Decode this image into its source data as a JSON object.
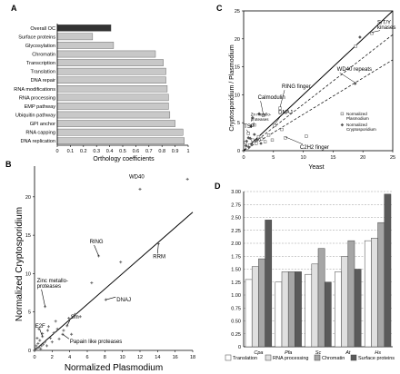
{
  "chart_data": [
    {
      "panel": "A",
      "type": "bar",
      "orientation": "horizontal",
      "categories": [
        "Overall OC",
        "Surface proteins",
        "Glycosylation",
        "Chromatin",
        "Transcription",
        "Translation",
        "DNA repair",
        "RNA modifications",
        "RNA processing",
        "EMP pathway",
        "Ubiquitin pathway",
        "GPI anchor",
        "RNA capping",
        "DNA replication"
      ],
      "values": [
        0.41,
        0.27,
        0.43,
        0.75,
        0.81,
        0.83,
        0.83,
        0.84,
        0.85,
        0.85,
        0.86,
        0.9,
        0.96,
        0.97
      ],
      "highlight_color": "#333333",
      "bar_color": "#c8c8c8",
      "xlabel": "Orthology coefficients",
      "xlim": [
        0,
        1
      ],
      "xticks": [
        "0",
        "0.1",
        "0.2",
        "0.3",
        "0.4",
        "0.5",
        "0.6",
        "0.7",
        "0.8",
        "0.9",
        "1"
      ]
    },
    {
      "panel": "B",
      "type": "scatter",
      "xlabel": "Normalized Plasmodium",
      "ylabel": "Normalized Cryptosporidium",
      "xlim": [
        0,
        18
      ],
      "ylim": [
        0,
        24
      ],
      "xticks": [
        "0",
        "2",
        "4",
        "6",
        "8",
        "10",
        "12",
        "14",
        "16",
        "18"
      ],
      "yticks": [
        "0",
        "5",
        "10",
        "15",
        "20"
      ],
      "labeled_points": [
        {
          "label": "WD40",
          "x": 12,
          "y": 21
        },
        {
          "label": "RING",
          "x": 7.3,
          "y": 12.3
        },
        {
          "label": "RRM",
          "x": 14.1,
          "y": 13.9
        },
        {
          "label": "Zinc metallo-\nproteases",
          "x": 1.2,
          "y": 5.7
        },
        {
          "label": "DNAJ",
          "x": 8.1,
          "y": 6.6
        },
        {
          "label": "Sm",
          "x": 3.7,
          "y": 3.2
        },
        {
          "label": "E2F",
          "x": 0.9,
          "y": 1.8
        },
        {
          "label": "Papain like proteases",
          "x": 3.2,
          "y": 2.1
        }
      ],
      "other_points": [
        [
          17.4,
          22.3
        ],
        [
          9.8,
          11.5
        ],
        [
          6.5,
          8.8
        ],
        [
          5.2,
          4.4
        ],
        [
          4.6,
          4.7
        ],
        [
          2.6,
          2.8
        ],
        [
          2.2,
          2.3
        ],
        [
          1.8,
          1.6
        ],
        [
          1.5,
          2.6
        ],
        [
          1.2,
          1.1
        ],
        [
          1,
          0.8
        ],
        [
          0.8,
          0.6
        ],
        [
          0.6,
          1.3
        ],
        [
          0.5,
          0.4
        ],
        [
          0.4,
          0.9
        ],
        [
          0.3,
          0.3
        ],
        [
          0.2,
          0.6
        ],
        [
          0.1,
          0.2
        ],
        [
          0.7,
          0.2
        ],
        [
          1.4,
          0.6
        ],
        [
          2,
          1.1
        ],
        [
          2.8,
          1.5
        ],
        [
          3.3,
          2.6
        ],
        [
          0.3,
          1.6
        ],
        [
          0.9,
          2.2
        ],
        [
          1.6,
          3.1
        ],
        [
          2.4,
          3.8
        ],
        [
          0.5,
          2.8
        ],
        [
          3.9,
          4.2
        ],
        [
          4.2,
          2.1
        ]
      ],
      "diagonal": true
    },
    {
      "panel": "C",
      "type": "scatter",
      "xlabel": "Yeast",
      "ylabel": "Cryptosporidium / Plasmodium",
      "xlim": [
        0,
        25
      ],
      "ylim": [
        0,
        25
      ],
      "xticks": [
        "0",
        "5",
        "10",
        "15",
        "20",
        "25"
      ],
      "yticks": [
        "0",
        "5",
        "10",
        "15",
        "20",
        "25"
      ],
      "legend": [
        "Normalized\nPlasmodium",
        "Normalized\nCryptosporidium"
      ],
      "legend_position": "right",
      "series": [
        {
          "name": "Normalized Plasmodium",
          "marker": "open-square",
          "points": [
            [
              21.5,
              21
            ],
            [
              18.8,
              18.7
            ],
            [
              6.1,
              7.6
            ],
            [
              3.3,
              6.3
            ],
            [
              1.8,
              4.6
            ],
            [
              0.8,
              3.1
            ],
            [
              5.2,
              4.5
            ],
            [
              6.4,
              3.8
            ],
            [
              7,
              2.3
            ],
            [
              10.5,
              2.6
            ],
            [
              4.2,
              2.8
            ],
            [
              2.5,
              2.5
            ],
            [
              3,
              2.1
            ],
            [
              1.5,
              1.9
            ],
            [
              2.1,
              1.3
            ],
            [
              1,
              1
            ],
            [
              0.6,
              0.5
            ],
            [
              3.6,
              1.6
            ],
            [
              4.8,
              1.9
            ],
            [
              0.3,
              1.5
            ]
          ]
        },
        {
          "name": "Normalized Cryptosporidium",
          "marker": "filled-diamond",
          "points": [
            [
              19.5,
              20.3
            ],
            [
              18.7,
              12
            ],
            [
              2.6,
              6.6
            ],
            [
              1.5,
              5.9
            ],
            [
              1.2,
              4.4
            ],
            [
              0.8,
              2.3
            ],
            [
              0.5,
              1.7
            ],
            [
              1.8,
              2.9
            ],
            [
              2.3,
              1.9
            ],
            [
              1.3,
              1.2
            ],
            [
              0.9,
              0.6
            ],
            [
              2.9,
              1.3
            ],
            [
              0.4,
              0.9
            ],
            [
              1.1,
              2.2
            ]
          ]
        }
      ],
      "labeled_points": [
        {
          "label": "S/T/Y\nkinases",
          "x": 21.5,
          "y": 21
        },
        {
          "label": "RING finger",
          "x": 6.1,
          "y": 7.6
        },
        {
          "label": "Calmodulin",
          "x": 3.3,
          "y": 6.3
        },
        {
          "label": "DNAJ",
          "x": 5.2,
          "y": 4.5
        },
        {
          "label": "Zn metallo-\nproteases",
          "x": 1.8,
          "y": 4.6
        },
        {
          "label": "TSP",
          "x": 0.8,
          "y": 3.1
        },
        {
          "label": "WD40 repeats",
          "x": 18.7,
          "y": 12
        },
        {
          "label": "C2H2 finger",
          "x": 7,
          "y": 2.3
        }
      ],
      "reference_lines": [
        {
          "style": "solid",
          "slope": 1
        },
        {
          "style": "dashed",
          "slope": 0.83
        },
        {
          "style": "dashed",
          "slope": 0.65
        }
      ]
    },
    {
      "panel": "D",
      "type": "bar",
      "categories": [
        "Cpa",
        "Pfa",
        "Sc",
        "At",
        "Hs"
      ],
      "series": [
        {
          "name": "Translation",
          "color": "#ffffff",
          "values": [
            1.3,
            1.25,
            1.4,
            1.45,
            2.05
          ]
        },
        {
          "name": "RNA processing",
          "color": "#e0e0e0",
          "values": [
            1.55,
            1.45,
            1.6,
            1.75,
            2.1
          ]
        },
        {
          "name": "Chromatin",
          "color": "#a6a6a6",
          "values": [
            1.7,
            1.45,
            1.9,
            2.05,
            2.4
          ]
        },
        {
          "name": "Surface proteins",
          "color": "#5a5a5a",
          "values": [
            2.45,
            1.45,
            1.25,
            1.5,
            2.95
          ]
        }
      ],
      "ylim": [
        0,
        3
      ],
      "yticks": [
        "0",
        "0.25",
        "0.50",
        "0.75",
        "1.00",
        "1.25",
        "1.50",
        "1.75",
        "2.00",
        "2.25",
        "2.50",
        "2.75",
        "3.00"
      ],
      "legend_position": "bottom",
      "grid": true
    }
  ]
}
